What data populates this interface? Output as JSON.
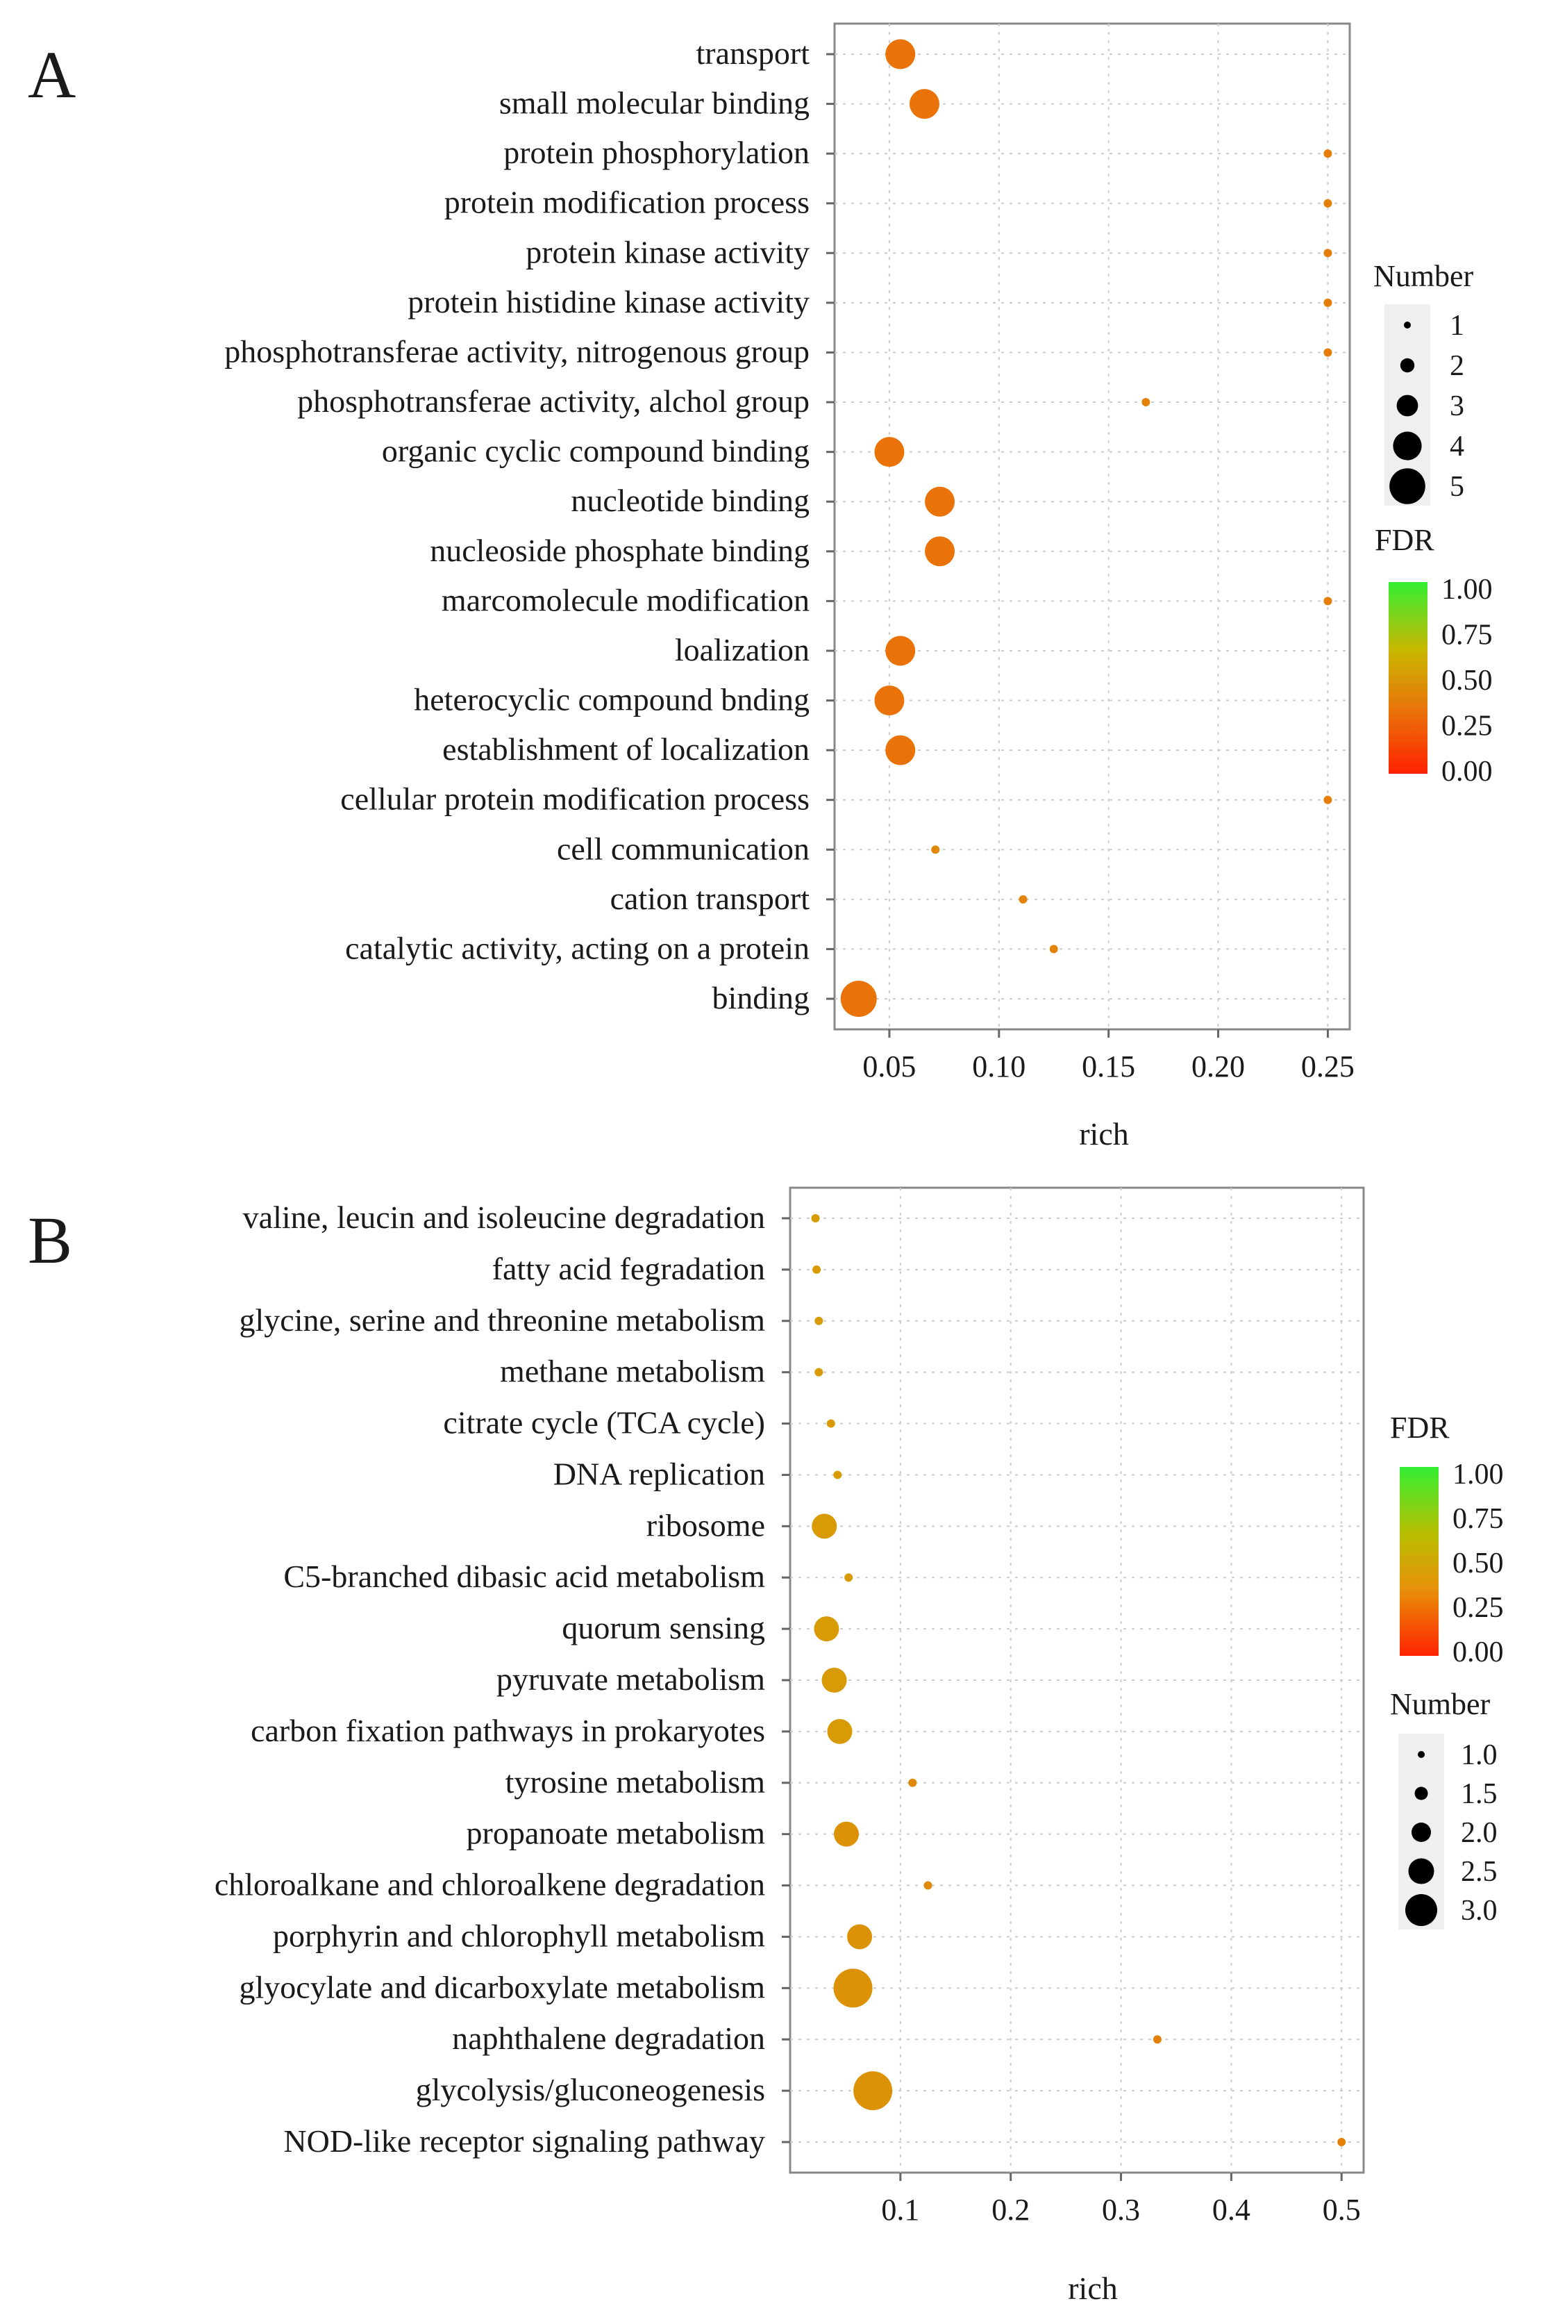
{
  "panels": [
    {
      "label": "A",
      "chart_data": {
        "type": "scatter",
        "title": "",
        "xlabel": "rich",
        "ylabel": "",
        "xlim": [
          0.025,
          0.26
        ],
        "xticks": [
          0.05,
          0.1,
          0.15,
          0.2,
          0.25
        ],
        "xtick_labels": [
          "0.05",
          "0.10",
          "0.15",
          "0.20",
          "0.25"
        ],
        "grid": true,
        "points": [
          {
            "term": "transport",
            "rich": 0.055,
            "number": 4,
            "fdr": 0.33
          },
          {
            "term": "small molecular binding",
            "rich": 0.066,
            "number": 4,
            "fdr": 0.33
          },
          {
            "term": "protein phosphorylation",
            "rich": 0.25,
            "number": 1,
            "fdr": 0.38
          },
          {
            "term": "protein modification process",
            "rich": 0.25,
            "number": 1,
            "fdr": 0.38
          },
          {
            "term": "protein kinase activity",
            "rich": 0.25,
            "number": 1,
            "fdr": 0.38
          },
          {
            "term": "protein histidine kinase activity",
            "rich": 0.25,
            "number": 1,
            "fdr": 0.38
          },
          {
            "term": "phosphotransferae activity, nitrogenous group",
            "rich": 0.25,
            "number": 1,
            "fdr": 0.38
          },
          {
            "term": "phosphotransferae activity, alchol group",
            "rich": 0.167,
            "number": 1,
            "fdr": 0.4
          },
          {
            "term": "organic cyclic compound binding",
            "rich": 0.05,
            "number": 4,
            "fdr": 0.33
          },
          {
            "term": "nucleotide binding",
            "rich": 0.073,
            "number": 4,
            "fdr": 0.33
          },
          {
            "term": "nucleoside phosphate binding",
            "rich": 0.073,
            "number": 4,
            "fdr": 0.33
          },
          {
            "term": "marcomolecule modification",
            "rich": 0.25,
            "number": 1,
            "fdr": 0.38
          },
          {
            "term": "loalization",
            "rich": 0.055,
            "number": 4,
            "fdr": 0.33
          },
          {
            "term": "heterocyclic compound bnding",
            "rich": 0.05,
            "number": 4,
            "fdr": 0.33
          },
          {
            "term": "establishment of localization",
            "rich": 0.055,
            "number": 4,
            "fdr": 0.33
          },
          {
            "term": "cellular protein modification process",
            "rich": 0.25,
            "number": 1,
            "fdr": 0.38
          },
          {
            "term": "cell communication",
            "rich": 0.071,
            "number": 1,
            "fdr": 0.45
          },
          {
            "term": "cation transport",
            "rich": 0.111,
            "number": 1,
            "fdr": 0.42
          },
          {
            "term": "catalytic activity, acting on a protein",
            "rich": 0.125,
            "number": 1,
            "fdr": 0.42
          },
          {
            "term": "binding",
            "rich": 0.036,
            "number": 5,
            "fdr": 0.33
          }
        ]
      },
      "legends": [
        {
          "kind": "size",
          "title": "Number",
          "labels": [
            "1",
            "2",
            "3",
            "4",
            "5"
          ],
          "values": [
            1,
            2,
            3,
            4,
            5
          ]
        },
        {
          "kind": "color",
          "title": "FDR",
          "labels": [
            "1.00",
            "0.75",
            "0.50",
            "0.25",
            "0.00"
          ],
          "colors": [
            "#33ee33",
            "#e8b800",
            "#e8780a",
            "#ff2200"
          ]
        }
      ]
    },
    {
      "label": "B",
      "chart_data": {
        "type": "scatter",
        "title": "",
        "xlabel": "rich",
        "ylabel": "",
        "xlim": [
          0.0,
          0.52
        ],
        "xticks": [
          0.1,
          0.2,
          0.3,
          0.4,
          0.5
        ],
        "xtick_labels": [
          "0.1",
          "0.2",
          "0.3",
          "0.4",
          "0.5"
        ],
        "grid": true,
        "points": [
          {
            "term": "valine, leucin and isoleucine degradation",
            "rich": 0.023,
            "number": 1,
            "fdr": 0.55
          },
          {
            "term": "fatty acid fegradation",
            "rich": 0.024,
            "number": 1,
            "fdr": 0.55
          },
          {
            "term": "glycine, serine and threonine metabolism",
            "rich": 0.026,
            "number": 1,
            "fdr": 0.55
          },
          {
            "term": "methane metabolism",
            "rich": 0.026,
            "number": 1,
            "fdr": 0.55
          },
          {
            "term": "citrate cycle (TCA cycle)",
            "rich": 0.037,
            "number": 1,
            "fdr": 0.55
          },
          {
            "term": "DNA replication",
            "rich": 0.043,
            "number": 1,
            "fdr": 0.55
          },
          {
            "term": "ribosome",
            "rich": 0.031,
            "number": 2,
            "fdr": 0.55
          },
          {
            "term": "C5-branched dibasic acid metabolism",
            "rich": 0.053,
            "number": 1,
            "fdr": 0.55
          },
          {
            "term": "quorum sensing",
            "rich": 0.033,
            "number": 2,
            "fdr": 0.55
          },
          {
            "term": "pyruvate metabolism",
            "rich": 0.04,
            "number": 2,
            "fdr": 0.55
          },
          {
            "term": "carbon fixation pathways in prokaryotes",
            "rich": 0.045,
            "number": 2,
            "fdr": 0.55
          },
          {
            "term": "tyrosine metabolism",
            "rich": 0.111,
            "number": 1,
            "fdr": 0.45
          },
          {
            "term": "propanoate metabolism",
            "rich": 0.051,
            "number": 2,
            "fdr": 0.5
          },
          {
            "term": "chloroalkane and chloroalkene degradation",
            "rich": 0.125,
            "number": 1,
            "fdr": 0.45
          },
          {
            "term": "porphyrin and chlorophyll metabolism",
            "rich": 0.063,
            "number": 2,
            "fdr": 0.5
          },
          {
            "term": "glyocylate and dicarboxylate metabolism",
            "rich": 0.057,
            "number": 3,
            "fdr": 0.5
          },
          {
            "term": "naphthalene degradation",
            "rich": 0.333,
            "number": 1,
            "fdr": 0.4
          },
          {
            "term": "glycolysis/gluconeogenesis",
            "rich": 0.075,
            "number": 3,
            "fdr": 0.5
          },
          {
            "term": "NOD-like receptor signaling pathway",
            "rich": 0.5,
            "number": 1,
            "fdr": 0.4
          }
        ]
      },
      "legends": [
        {
          "kind": "color",
          "title": "FDR",
          "labels": [
            "1.00",
            "0.75",
            "0.50",
            "0.25",
            "0.00"
          ],
          "colors": [
            "#33ee33",
            "#c8c000",
            "#e8a000",
            "#ff2200"
          ]
        },
        {
          "kind": "size",
          "title": "Number",
          "labels": [
            "1.0",
            "1.5",
            "2.0",
            "2.5",
            "3.0"
          ],
          "values": [
            1,
            1.5,
            2,
            2.5,
            3
          ]
        }
      ]
    }
  ]
}
